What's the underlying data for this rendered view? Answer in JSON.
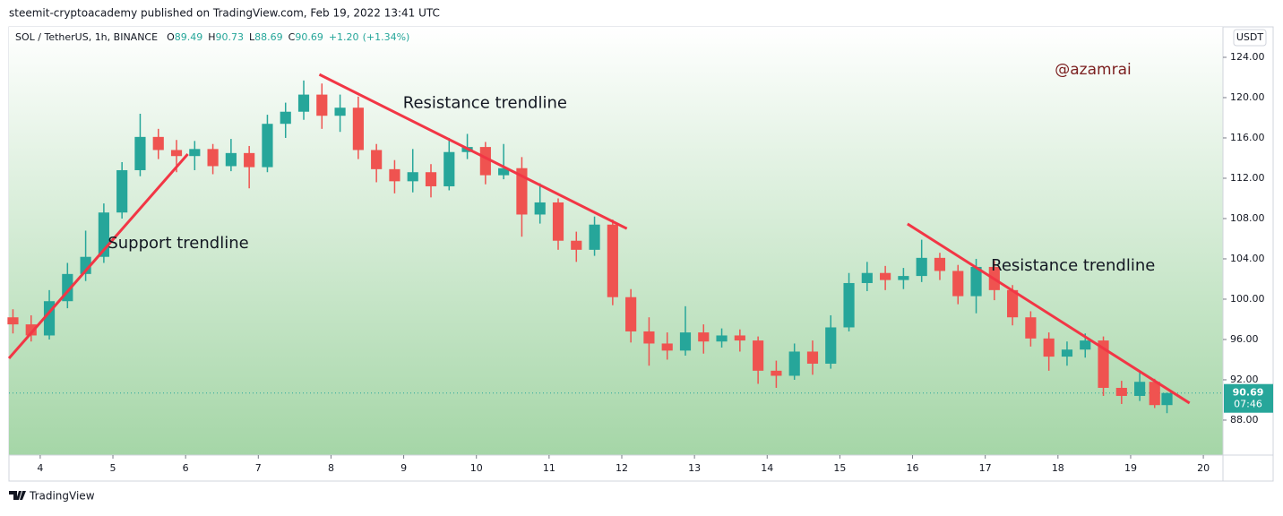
{
  "header": {
    "published": "steemit-cryptoacademy published on TradingView.com, Feb 19, 2022 13:41 UTC"
  },
  "footer": {
    "brand": "TradingView"
  },
  "chart_data": {
    "type": "candlestick",
    "symbol": "SOL / TetherUS, 1h, BINANCE",
    "ohlc_labels": [
      "O",
      "H",
      "L",
      "C"
    ],
    "change": {
      "value": 1.2,
      "label": "+1.20"
    },
    "change_pct": {
      "value": 1.34,
      "label": "(+1.34%)"
    },
    "currency": "USDT",
    "watermark": "@azamrai",
    "countdown": "07:46",
    "up_color": "#26a69a",
    "down_color": "#ef5350",
    "trendline_color": "#f23645",
    "annotations": [
      {
        "text": "Support trendline",
        "x": 4.93,
        "y": 105.5
      },
      {
        "text": "Resistance trendline",
        "x": 8.99,
        "y": 119.4
      },
      {
        "text": "Resistance trendline",
        "x": 17.08,
        "y": 103.3
      }
    ],
    "trendlines": [
      {
        "x": [
          3.57,
          6.03
        ],
        "y": [
          94.13,
          114.4
        ]
      },
      {
        "x": [
          7.84,
          12.07
        ],
        "y": [
          122.3,
          107.0
        ]
      },
      {
        "x": [
          15.93,
          19.81
        ],
        "y": [
          107.47,
          89.69
        ]
      }
    ],
    "xlim": [
      3.57,
      20.27
    ],
    "xticks": [
      4,
      5,
      6,
      7,
      8,
      9,
      10,
      11,
      12,
      13,
      14,
      15,
      16,
      17,
      18,
      19,
      20
    ],
    "ylim": [
      84.53,
      127.02
    ],
    "yticks": [
      {
        "value": 88,
        "label": "88.00"
      },
      {
        "value": 92,
        "label": "92.00"
      },
      {
        "value": 96,
        "label": "96.00"
      },
      {
        "value": 100,
        "label": "100.00"
      },
      {
        "value": 104,
        "label": "104.00"
      },
      {
        "value": 108,
        "label": "108.00"
      },
      {
        "value": 112,
        "label": "112.00"
      },
      {
        "value": 116,
        "label": "116.00"
      },
      {
        "value": 120,
        "label": "120.00"
      },
      {
        "value": 124,
        "label": "124.00"
      }
    ],
    "candles": {
      "x": [
        3.625,
        3.875,
        4.125,
        4.375,
        4.625,
        4.875,
        5.125,
        5.375,
        5.625,
        5.875,
        6.125,
        6.375,
        6.625,
        6.875,
        7.125,
        7.375,
        7.625,
        7.875,
        8.125,
        8.375,
        8.625,
        8.875,
        9.125,
        9.375,
        9.625,
        9.875,
        10.125,
        10.375,
        10.625,
        10.875,
        11.125,
        11.375,
        11.625,
        11.875,
        12.125,
        12.375,
        12.625,
        12.875,
        13.125,
        13.375,
        13.625,
        13.875,
        14.125,
        14.375,
        14.625,
        14.875,
        15.125,
        15.375,
        15.625,
        15.875,
        16.125,
        16.375,
        16.625,
        16.875,
        17.125,
        17.375,
        17.625,
        17.875,
        18.125,
        18.375,
        18.625,
        18.875,
        19.125,
        19.33,
        19.5
      ],
      "open": [
        98.2,
        97.5,
        96.4,
        99.8,
        102.5,
        104.2,
        108.6,
        112.8,
        116.1,
        114.8,
        114.2,
        114.9,
        113.2,
        114.5,
        113.1,
        117.4,
        118.6,
        120.3,
        118.2,
        119.0,
        114.8,
        112.9,
        111.7,
        112.6,
        111.2,
        114.6,
        115.1,
        112.3,
        113.0,
        108.4,
        109.6,
        105.8,
        104.9,
        107.4,
        100.2,
        96.8,
        95.6,
        94.9,
        96.7,
        95.8,
        96.4,
        95.9,
        92.9,
        92.4,
        94.8,
        93.6,
        97.2,
        101.6,
        102.6,
        101.9,
        102.3,
        104.1,
        102.8,
        100.3,
        103.2,
        100.9,
        98.2,
        96.1,
        94.3,
        95.0,
        95.9,
        91.2,
        90.4,
        91.8,
        89.49
      ],
      "high": [
        99.0,
        98.4,
        100.9,
        103.6,
        106.8,
        109.5,
        113.6,
        118.4,
        116.9,
        115.8,
        115.7,
        115.4,
        115.9,
        115.2,
        118.3,
        119.5,
        121.7,
        121.4,
        120.3,
        120.1,
        115.4,
        113.8,
        114.9,
        113.4,
        116.0,
        116.4,
        115.6,
        115.4,
        114.1,
        111.5,
        110.0,
        106.7,
        108.2,
        107.9,
        101.0,
        98.2,
        96.7,
        99.3,
        97.5,
        97.1,
        97.0,
        96.3,
        93.9,
        95.6,
        95.9,
        98.4,
        102.6,
        103.7,
        103.3,
        103.1,
        105.9,
        104.6,
        103.4,
        104.0,
        103.8,
        101.4,
        98.8,
        96.7,
        95.8,
        96.6,
        96.3,
        91.9,
        92.7,
        92.1,
        90.73
      ],
      "low": [
        96.6,
        95.8,
        96.0,
        99.1,
        101.8,
        103.6,
        108.0,
        112.2,
        113.9,
        112.6,
        112.8,
        112.4,
        112.7,
        111.0,
        112.6,
        116.0,
        117.8,
        116.9,
        116.6,
        113.9,
        111.6,
        110.5,
        110.6,
        110.1,
        110.8,
        113.9,
        111.4,
        111.9,
        106.2,
        107.5,
        104.9,
        103.7,
        104.3,
        99.4,
        95.7,
        93.4,
        94.0,
        94.4,
        94.6,
        95.2,
        94.8,
        91.6,
        91.2,
        92.0,
        92.5,
        93.1,
        96.8,
        100.8,
        100.9,
        101.0,
        101.7,
        101.9,
        99.5,
        98.6,
        99.9,
        97.4,
        95.3,
        92.9,
        93.4,
        94.2,
        90.4,
        89.6,
        89.9,
        89.2,
        88.69
      ],
      "close": [
        97.5,
        96.4,
        99.8,
        102.5,
        104.2,
        108.6,
        112.8,
        116.1,
        114.8,
        114.2,
        114.9,
        113.2,
        114.5,
        113.1,
        117.4,
        118.6,
        120.3,
        118.2,
        119.0,
        114.8,
        112.9,
        111.7,
        112.6,
        111.2,
        114.6,
        115.1,
        112.3,
        113.0,
        108.4,
        109.6,
        105.8,
        104.9,
        107.4,
        100.2,
        96.8,
        95.6,
        94.9,
        96.7,
        95.8,
        96.4,
        95.9,
        92.9,
        92.4,
        94.8,
        93.6,
        97.2,
        101.6,
        102.6,
        101.9,
        102.3,
        104.1,
        102.8,
        100.3,
        103.2,
        100.9,
        98.2,
        96.1,
        94.3,
        95.0,
        95.9,
        91.2,
        90.4,
        91.8,
        89.49,
        90.69
      ]
    }
  }
}
